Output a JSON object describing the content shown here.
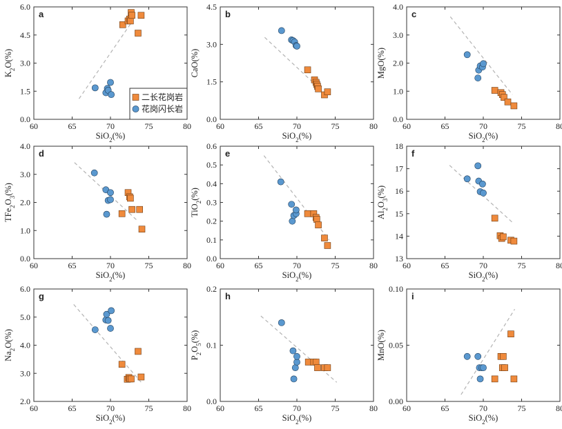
{
  "colors": {
    "orange": "#ef8a3c",
    "orange_edge": "#6b3a12",
    "blue": "#5a98cf",
    "blue_edge": "#23415e",
    "trend": "#b3b3b3"
  },
  "legend": {
    "panel": "a",
    "items": [
      {
        "series": "orange_square",
        "label": "二长花岗岩"
      },
      {
        "series": "blue_circle",
        "label": "花岗闪长岩"
      }
    ]
  },
  "chart_data": [
    {
      "id": "a",
      "letter": "a",
      "type": "scatter",
      "xlabel": "SiO2(%)",
      "ylabel": "K2O(%)",
      "xlim": [
        60,
        80
      ],
      "ylim": [
        0,
        6
      ],
      "xticks": [
        "60",
        "65",
        "70",
        "75",
        "80"
      ],
      "yticks": [
        "0.0",
        "1.5",
        "3.0",
        "4.5",
        "6.0"
      ],
      "series": [
        {
          "key": "orange_square",
          "points": [
            [
              71.6,
              5.05
            ],
            [
              72.3,
              5.25
            ],
            [
              72.5,
              5.35
            ],
            [
              72.6,
              5.25
            ],
            [
              72.7,
              5.7
            ],
            [
              72.8,
              5.55
            ],
            [
              73.6,
              4.6
            ],
            [
              74.0,
              5.55
            ]
          ]
        },
        {
          "key": "blue_circle",
          "points": [
            [
              68.0,
              1.68
            ],
            [
              69.4,
              1.42
            ],
            [
              69.6,
              1.65
            ],
            [
              69.7,
              1.55
            ],
            [
              70.0,
              1.97
            ],
            [
              70.1,
              1.32
            ]
          ]
        }
      ],
      "trend": [
        [
          65.9,
          1.1
        ],
        [
          72.8,
          5.2
        ]
      ]
    },
    {
      "id": "b",
      "letter": "b",
      "type": "scatter",
      "xlabel": "SiO2(%)",
      "ylabel": "CaO(%)",
      "xlim": [
        60,
        80
      ],
      "ylim": [
        0,
        4.5
      ],
      "xticks": [
        "60",
        "65",
        "70",
        "75",
        "80"
      ],
      "yticks": [
        "0.0",
        "1.5",
        "3.0",
        "4.5"
      ],
      "series": [
        {
          "key": "orange_square",
          "points": [
            [
              71.4,
              1.98
            ],
            [
              72.3,
              1.58
            ],
            [
              72.5,
              1.48
            ],
            [
              72.6,
              1.4
            ],
            [
              72.7,
              1.32
            ],
            [
              72.8,
              1.22
            ],
            [
              73.6,
              0.98
            ],
            [
              74.0,
              1.1
            ]
          ]
        },
        {
          "key": "blue_circle",
          "points": [
            [
              68.0,
              3.55
            ],
            [
              69.3,
              3.18
            ],
            [
              69.5,
              3.15
            ],
            [
              69.7,
              3.1
            ],
            [
              69.9,
              2.95
            ],
            [
              70.0,
              2.93
            ]
          ]
        }
      ],
      "trend": [
        [
          65.8,
          3.28
        ],
        [
          73.6,
          1.05
        ]
      ]
    },
    {
      "id": "c",
      "letter": "c",
      "type": "scatter",
      "xlabel": "SiO2(%)",
      "ylabel": "MgO(%)",
      "xlim": [
        60,
        80
      ],
      "ylim": [
        0,
        4
      ],
      "xticks": [
        "60",
        "65",
        "70",
        "75",
        "80"
      ],
      "yticks": [
        "0.0",
        "1.0",
        "2.0",
        "3.0",
        "4.0"
      ],
      "series": [
        {
          "key": "orange_square",
          "points": [
            [
              71.5,
              1.03
            ],
            [
              72.3,
              0.95
            ],
            [
              72.5,
              0.88
            ],
            [
              72.7,
              0.78
            ],
            [
              73.2,
              0.62
            ],
            [
              74.0,
              0.48
            ]
          ]
        },
        {
          "key": "blue_circle",
          "points": [
            [
              67.9,
              2.3
            ],
            [
              69.3,
              1.47
            ],
            [
              69.4,
              1.75
            ],
            [
              69.6,
              1.9
            ],
            [
              69.9,
              1.86
            ],
            [
              70.0,
              1.98
            ]
          ]
        }
      ],
      "trend": [
        [
          65.7,
          3.65
        ],
        [
          73.8,
          0.88
        ]
      ]
    },
    {
      "id": "d",
      "letter": "d",
      "type": "scatter",
      "xlabel": "SiO2(%)",
      "ylabel": "TFe2O3(%)",
      "xlim": [
        60,
        80
      ],
      "ylim": [
        0,
        4
      ],
      "xticks": [
        "60",
        "65",
        "70",
        "75",
        "80"
      ],
      "yticks": [
        "0.0",
        "1.0",
        "2.0",
        "3.0",
        "4.0"
      ],
      "series": [
        {
          "key": "orange_square",
          "points": [
            [
              71.5,
              1.6
            ],
            [
              72.3,
              2.35
            ],
            [
              72.5,
              2.2
            ],
            [
              72.6,
              2.15
            ],
            [
              72.8,
              1.75
            ],
            [
              73.8,
              1.75
            ],
            [
              74.1,
              1.05
            ]
          ]
        },
        {
          "key": "blue_circle",
          "points": [
            [
              67.9,
              3.05
            ],
            [
              69.4,
              2.45
            ],
            [
              69.5,
              1.58
            ],
            [
              69.7,
              2.07
            ],
            [
              70.0,
              2.1
            ],
            [
              70.0,
              2.35
            ]
          ]
        }
      ],
      "trend": [
        [
          65.3,
          3.42
        ],
        [
          73.4,
          1.38
        ]
      ]
    },
    {
      "id": "e",
      "letter": "e",
      "type": "scatter",
      "xlabel": "SiO2(%)",
      "ylabel": "TiO2(%)",
      "xlim": [
        60,
        80
      ],
      "ylim": [
        0,
        0.6
      ],
      "xticks": [
        "60",
        "65",
        "70",
        "75",
        "80"
      ],
      "yticks": [
        "0.0",
        "0.1",
        "0.2",
        "0.3",
        "0.4",
        "0.5",
        "0.6"
      ],
      "series": [
        {
          "key": "orange_square",
          "points": [
            [
              71.4,
              0.24
            ],
            [
              72.2,
              0.24
            ],
            [
              72.5,
              0.22
            ],
            [
              72.6,
              0.21
            ],
            [
              72.8,
              0.18
            ],
            [
              73.6,
              0.11
            ],
            [
              74.0,
              0.07
            ]
          ]
        },
        {
          "key": "blue_circle",
          "points": [
            [
              67.9,
              0.41
            ],
            [
              69.3,
              0.29
            ],
            [
              69.4,
              0.2
            ],
            [
              69.6,
              0.23
            ],
            [
              69.9,
              0.24
            ],
            [
              69.9,
              0.26
            ]
          ]
        }
      ],
      "trend": [
        [
          65.7,
          0.55
        ],
        [
          74.2,
          0.1
        ]
      ]
    },
    {
      "id": "f",
      "letter": "f",
      "type": "scatter",
      "xlabel": "SiO2(%)",
      "ylabel": "Al2O3(%)",
      "xlim": [
        60,
        80
      ],
      "ylim": [
        13,
        18
      ],
      "xticks": [
        "60",
        "65",
        "70",
        "75",
        "80"
      ],
      "yticks": [
        "13",
        "14",
        "15",
        "16",
        "17",
        "18"
      ],
      "series": [
        {
          "key": "orange_square",
          "points": [
            [
              71.5,
              14.8
            ],
            [
              72.2,
              14.02
            ],
            [
              72.4,
              13.9
            ],
            [
              72.6,
              13.97
            ],
            [
              73.6,
              13.82
            ],
            [
              74.0,
              13.78
            ]
          ]
        },
        {
          "key": "blue_circle",
          "points": [
            [
              67.9,
              16.55
            ],
            [
              69.3,
              17.13
            ],
            [
              69.4,
              16.45
            ],
            [
              69.6,
              15.98
            ],
            [
              69.9,
              16.32
            ],
            [
              70.0,
              15.92
            ]
          ]
        }
      ],
      "trend": [
        [
          65.6,
          17.15
        ],
        [
          74.0,
          14.55
        ]
      ]
    },
    {
      "id": "g",
      "letter": "g",
      "type": "scatter",
      "xlabel": "SiO2(%)",
      "ylabel": "Na2O(%)",
      "xlim": [
        60,
        80
      ],
      "ylim": [
        2,
        6
      ],
      "xticks": [
        "60",
        "65",
        "70",
        "75",
        "80"
      ],
      "yticks": [
        "2.0",
        "3.0",
        "4.0",
        "5.0",
        "6.0"
      ],
      "series": [
        {
          "key": "orange_square",
          "points": [
            [
              71.5,
              3.32
            ],
            [
              72.2,
              2.79
            ],
            [
              72.4,
              2.85
            ],
            [
              72.5,
              2.8
            ],
            [
              72.7,
              2.8
            ],
            [
              73.6,
              3.78
            ],
            [
              74.0,
              2.87
            ]
          ]
        },
        {
          "key": "blue_circle",
          "points": [
            [
              68.0,
              4.55
            ],
            [
              69.4,
              4.9
            ],
            [
              69.5,
              5.1
            ],
            [
              69.7,
              4.88
            ],
            [
              70.0,
              4.6
            ],
            [
              70.1,
              5.23
            ]
          ]
        }
      ],
      "trend": [
        [
          65.2,
          5.45
        ],
        [
          74.2,
          2.62
        ]
      ]
    },
    {
      "id": "h",
      "letter": "h",
      "type": "scatter",
      "xlabel": "SiO2(%)",
      "ylabel": "P2O5(%)",
      "xlim": [
        60,
        80
      ],
      "ylim": [
        0,
        0.2
      ],
      "xticks": [
        "60",
        "65",
        "70",
        "75",
        "80"
      ],
      "yticks": [
        "0.0",
        "0.1",
        "0.2"
      ],
      "series": [
        {
          "key": "orange_square",
          "points": [
            [
              71.5,
              0.07
            ],
            [
              72.2,
              0.07
            ],
            [
              72.5,
              0.07
            ],
            [
              72.7,
              0.06
            ],
            [
              73.6,
              0.06
            ],
            [
              74.0,
              0.06
            ]
          ]
        },
        {
          "key": "blue_circle",
          "points": [
            [
              68.0,
              0.14
            ],
            [
              69.5,
              0.09
            ],
            [
              69.6,
              0.04
            ],
            [
              69.8,
              0.06
            ],
            [
              70.0,
              0.07
            ],
            [
              70.0,
              0.08
            ]
          ]
        }
      ],
      "trend": [
        [
          65.3,
          0.152
        ],
        [
          75.2,
          0.034
        ]
      ]
    },
    {
      "id": "i",
      "letter": "i",
      "type": "scatter",
      "xlabel": "SiO2(%)",
      "ylabel": "MnO(%)",
      "xlim": [
        60,
        80
      ],
      "ylim": [
        0,
        0.1
      ],
      "xticks": [
        "60",
        "65",
        "70",
        "75",
        "80"
      ],
      "yticks": [
        "0.00",
        "0.05",
        "0.10"
      ],
      "series": [
        {
          "key": "orange_square",
          "points": [
            [
              71.5,
              0.02
            ],
            [
              72.3,
              0.04
            ],
            [
              72.5,
              0.03
            ],
            [
              72.6,
              0.04
            ],
            [
              72.8,
              0.03
            ],
            [
              73.6,
              0.06
            ],
            [
              74.0,
              0.02
            ]
          ]
        },
        {
          "key": "blue_circle",
          "points": [
            [
              67.9,
              0.04
            ],
            [
              69.3,
              0.04
            ],
            [
              69.5,
              0.03
            ],
            [
              69.6,
              0.02
            ],
            [
              69.8,
              0.03
            ],
            [
              70.0,
              0.03
            ]
          ]
        }
      ],
      "trend": [
        [
          67.1,
          0.006
        ],
        [
          74.1,
          0.082
        ]
      ]
    }
  ]
}
